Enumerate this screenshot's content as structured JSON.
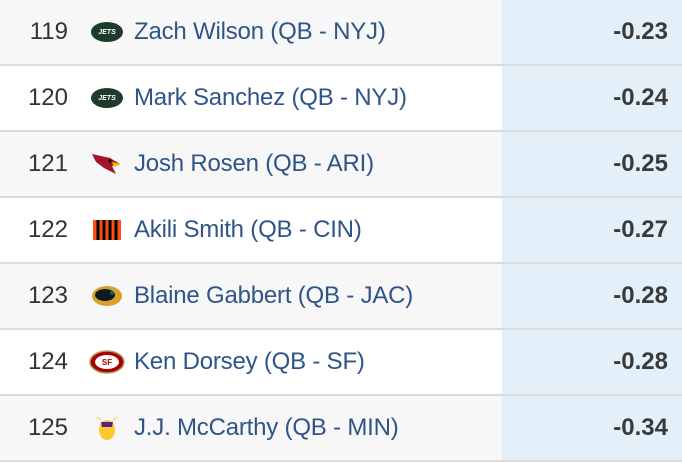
{
  "rows": [
    {
      "rank": "119",
      "player": "Zach Wilson (QB - NYJ)",
      "team_icon": "jets-logo-icon",
      "value": "-0.23"
    },
    {
      "rank": "120",
      "player": "Mark Sanchez (QB - NYJ)",
      "team_icon": "jets-logo-icon",
      "value": "-0.24"
    },
    {
      "rank": "121",
      "player": "Josh Rosen (QB - ARI)",
      "team_icon": "cardinals-logo-icon",
      "value": "-0.25"
    },
    {
      "rank": "122",
      "player": "Akili Smith (QB - CIN)",
      "team_icon": "bengals-logo-icon",
      "value": "-0.27"
    },
    {
      "rank": "123",
      "player": "Blaine Gabbert (QB - JAC)",
      "team_icon": "jaguars-logo-icon",
      "value": "-0.28"
    },
    {
      "rank": "124",
      "player": "Ken Dorsey (QB - SF)",
      "team_icon": "49ers-logo-icon",
      "value": "-0.28"
    },
    {
      "rank": "125",
      "player": "J.J. McCarthy (QB - MIN)",
      "team_icon": "vikings-logo-icon",
      "value": "-0.34"
    }
  ],
  "colors": {
    "link": "#2e5587",
    "value_column_bg": "#e4f0f9",
    "row_alt_bg": "#f7f7f7"
  }
}
